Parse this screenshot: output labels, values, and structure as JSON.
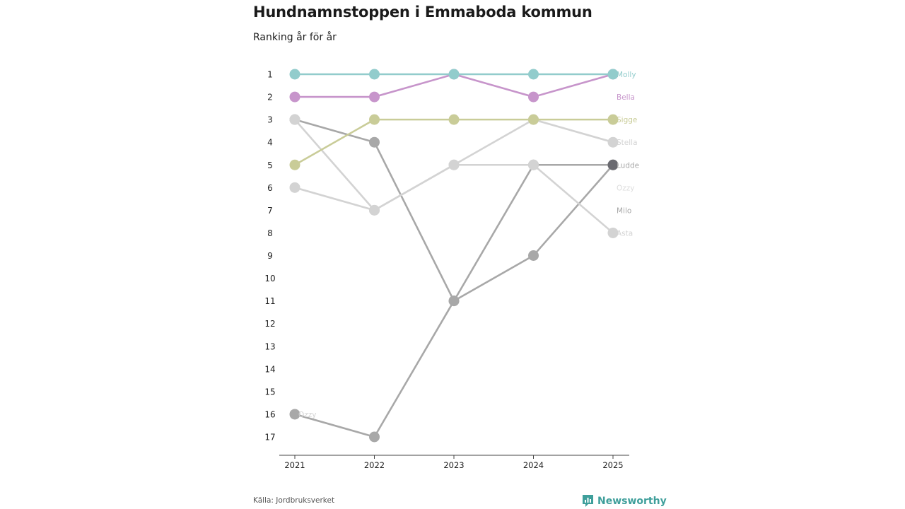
{
  "title": "Hundnamnstoppen i Emmaboda kommun",
  "subtitle": "Ranking år för år",
  "source": "Källa: Jordbruksverket",
  "brand": {
    "name": "Newsworthy",
    "icon": "newsworthy-logo-icon",
    "color": "#3f9f9b"
  },
  "chart_data": {
    "type": "line",
    "title": "Hundnamnstoppen i Emmaboda kommun",
    "subtitle": "Ranking år för år",
    "xlabel": "",
    "ylabel": "",
    "x": [
      "2021",
      "2022",
      "2023",
      "2024",
      "2025"
    ],
    "y_ticks": [
      "1",
      "2",
      "3",
      "4",
      "5",
      "6",
      "7",
      "8",
      "9",
      "10",
      "11",
      "12",
      "13",
      "14",
      "15",
      "16",
      "17"
    ],
    "ylim": [
      1,
      17
    ],
    "y_inverted": true,
    "grid": false,
    "series": [
      {
        "name": "Milo",
        "label": "Milo",
        "color": "#a8a8a8",
        "values": [
          16,
          17,
          11,
          5,
          5
        ]
      },
      {
        "name": "Ludde",
        "label": "Ludde",
        "color": "#a8a8a8",
        "values": [
          3,
          4,
          11,
          9,
          5
        ]
      },
      {
        "name": "Asta",
        "label": "Asta",
        "color": "#d3d3d3",
        "values": [
          6,
          7,
          5,
          5,
          8
        ]
      },
      {
        "name": "Stella",
        "label": "Stella",
        "color": "#d3d3d3",
        "values": [
          3,
          7,
          5,
          3,
          4
        ]
      },
      {
        "name": "Sigge",
        "label": "Sigge",
        "color": "#c9cc98",
        "values": [
          5,
          3,
          3,
          3,
          3
        ]
      },
      {
        "name": "Bella",
        "label": "Bella",
        "color": "#c795cb",
        "values": [
          2,
          2,
          1,
          2,
          1
        ]
      },
      {
        "name": "Molly",
        "label": "Molly",
        "color": "#92cccc",
        "values": [
          1,
          1,
          1,
          1,
          1
        ]
      }
    ],
    "end_labels": [
      {
        "text": "Molly",
        "rank": 1,
        "color": "#92cccc"
      },
      {
        "text": "Bella",
        "rank": 2,
        "color": "#c795cb"
      },
      {
        "text": "Sigge",
        "rank": 3,
        "color": "#c9cc98"
      },
      {
        "text": "Stella",
        "rank": 4,
        "color": "#d3d3d3"
      },
      {
        "text": "Ludde",
        "rank": 5,
        "color": "#a8a8a8"
      },
      {
        "text": "Ozzy",
        "rank": 6,
        "color": "#dcdcdc"
      },
      {
        "text": "Milo",
        "rank": 7,
        "color": "#a8a8a8"
      },
      {
        "text": "Asta",
        "rank": 8,
        "color": "#d3d3d3"
      }
    ],
    "annotations": [
      {
        "text": "Ozzy",
        "x": "2021",
        "rank": 16,
        "color": "#d3d3d3"
      }
    ],
    "highlight_point": {
      "series": "Ludde",
      "x": "2025",
      "rank": 5,
      "color": "#6a6a70"
    }
  }
}
